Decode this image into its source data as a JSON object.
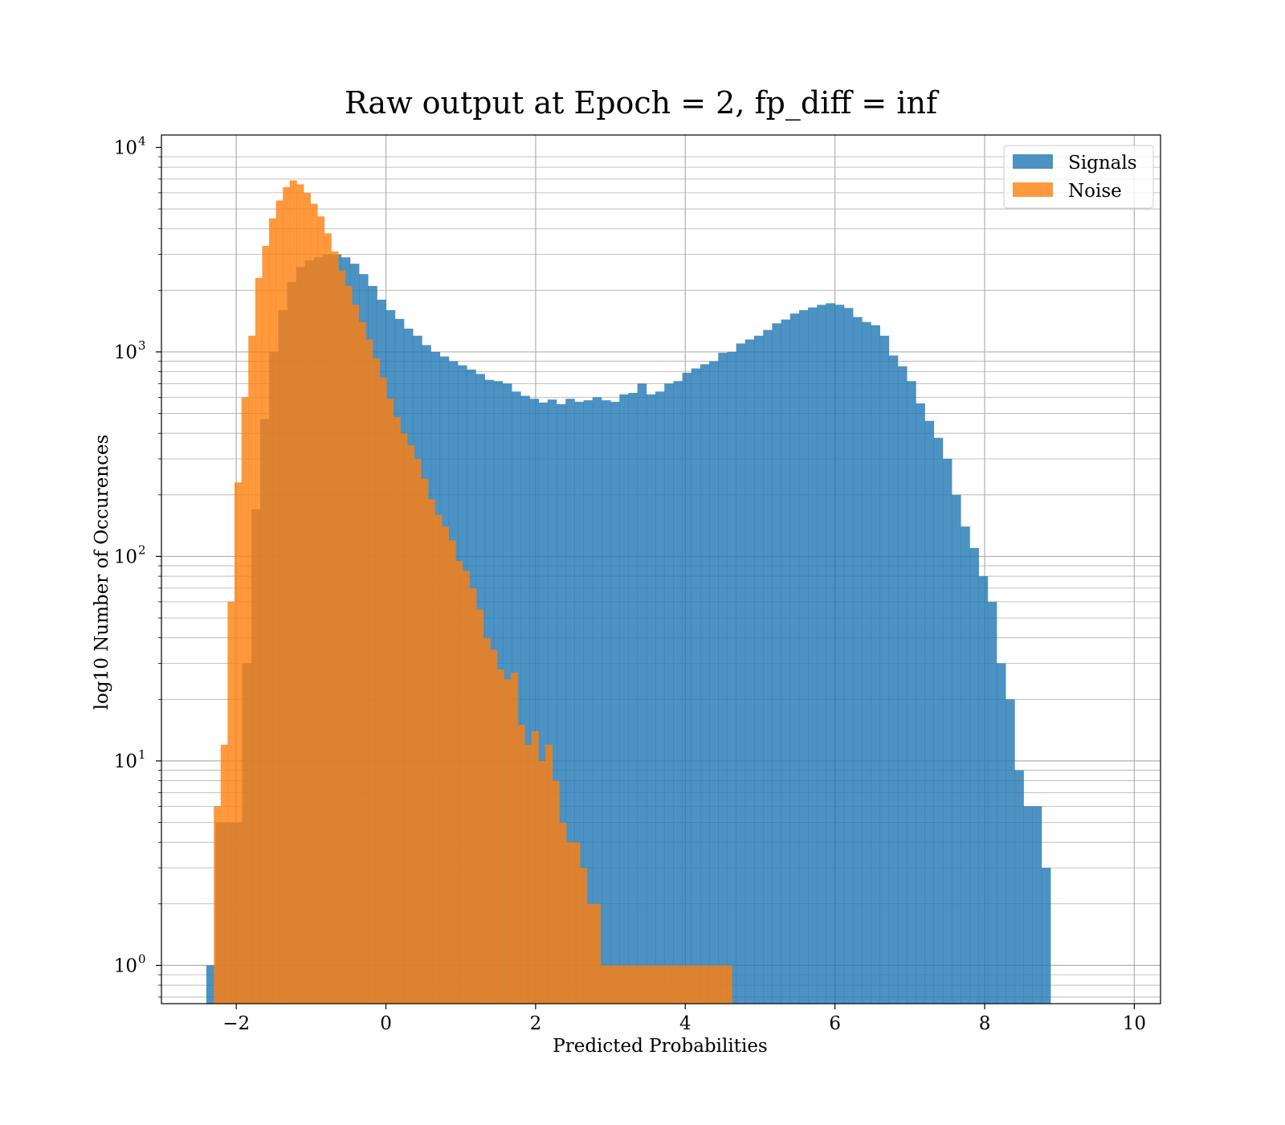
{
  "chart_data": {
    "type": "bar",
    "title": "Raw output at Epoch = 2, fp_diff = inf",
    "xlabel": "Predicted Probabilities",
    "ylabel": "log10 Number of Occurences",
    "xlim": [
      -3,
      10.35
    ],
    "ylim": [
      0.65,
      11500
    ],
    "y_scale": "log",
    "grid": true,
    "grid_minor_y": true,
    "legend_position": "top-right",
    "x_ticks": [
      {
        "value": -2,
        "label": "−2"
      },
      {
        "value": 0,
        "label": "0"
      },
      {
        "value": 2,
        "label": "2"
      },
      {
        "value": 4,
        "label": "4"
      },
      {
        "value": 6,
        "label": "6"
      },
      {
        "value": 8,
        "label": "8"
      },
      {
        "value": 10,
        "label": "10"
      }
    ],
    "y_ticks": [
      {
        "value": 1,
        "base": "10",
        "exp": "0"
      },
      {
        "value": 10,
        "base": "10",
        "exp": "1"
      },
      {
        "value": 100,
        "base": "10",
        "exp": "2"
      },
      {
        "value": 1000,
        "base": "10",
        "exp": "3"
      },
      {
        "value": 10000,
        "base": "10",
        "exp": "4"
      }
    ],
    "series": [
      {
        "name": "Signals",
        "color": "#1f77b4",
        "opacity": 0.8,
        "bin_start": -2.4,
        "bin_width": 0.12,
        "values": [
          1,
          5,
          5,
          5,
          30,
          170,
          470,
          1000,
          1600,
          2200,
          2600,
          2800,
          2900,
          3000,
          3000,
          2900,
          2700,
          2400,
          2100,
          1800,
          1600,
          1450,
          1300,
          1200,
          1080,
          1000,
          950,
          900,
          860,
          820,
          780,
          730,
          720,
          700,
          640,
          610,
          590,
          565,
          585,
          555,
          590,
          570,
          580,
          600,
          580,
          570,
          620,
          630,
          700,
          620,
          640,
          700,
          720,
          790,
          830,
          870,
          900,
          990,
          1000,
          1100,
          1150,
          1200,
          1280,
          1380,
          1440,
          1540,
          1600,
          1650,
          1700,
          1730,
          1700,
          1640,
          1480,
          1400,
          1350,
          1200,
          960,
          850,
          720,
          560,
          460,
          380,
          300,
          200,
          140,
          110,
          80,
          60,
          30,
          20,
          9,
          6,
          6,
          3
        ]
      },
      {
        "name": "Noise",
        "color": "#ff7f0e",
        "opacity": 0.8,
        "bin_start": -2.3,
        "bin_width": 0.0923,
        "values": [
          6,
          12,
          60,
          230,
          600,
          1200,
          2300,
          3300,
          4500,
          5500,
          6400,
          6900,
          6600,
          6000,
          5300,
          4600,
          3800,
          3100,
          2500,
          2100,
          1700,
          1400,
          1150,
          930,
          750,
          590,
          480,
          400,
          350,
          300,
          240,
          190,
          160,
          140,
          120,
          95,
          85,
          70,
          55,
          40,
          35,
          28,
          25,
          27,
          15,
          12,
          14,
          10,
          12,
          8,
          5,
          4,
          4,
          3,
          2,
          2,
          1,
          1,
          1,
          1,
          1,
          1,
          1,
          1,
          1,
          1,
          1,
          1,
          1,
          1,
          1,
          1,
          1,
          1,
          1
        ]
      }
    ]
  }
}
